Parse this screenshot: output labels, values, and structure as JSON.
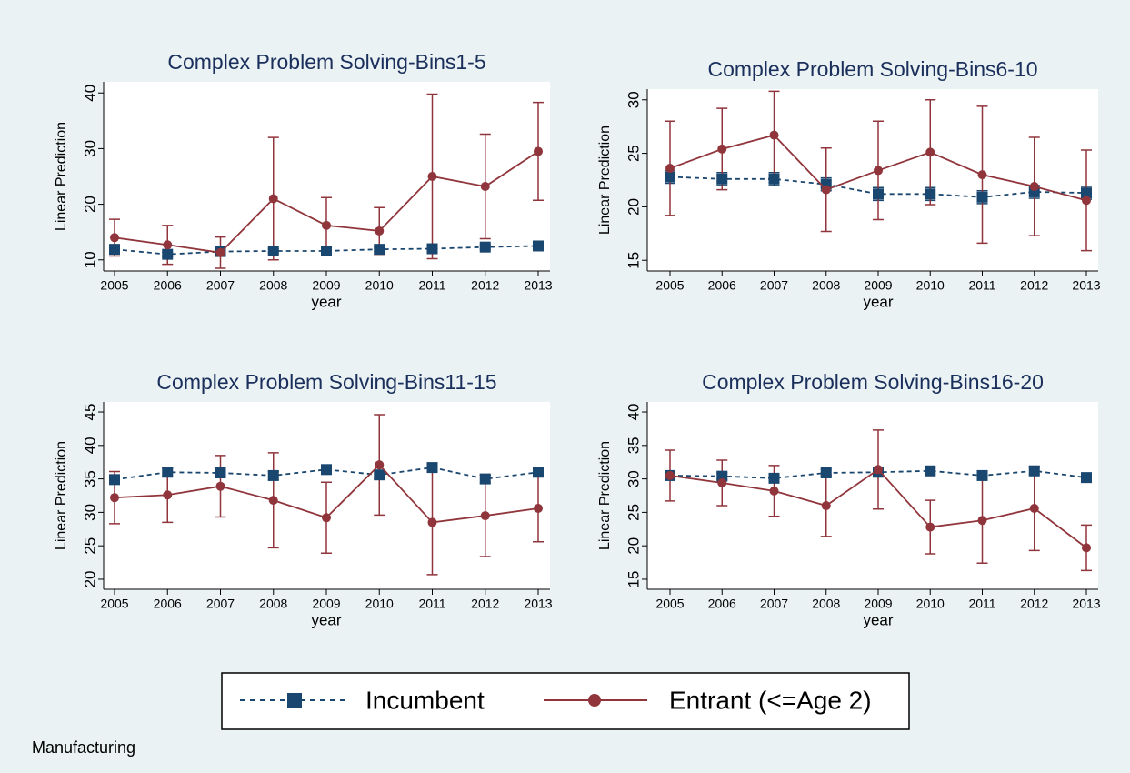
{
  "chart_data": [
    {
      "type": "line",
      "title": "Complex Problem Solving-Bins1-5",
      "x_label": "year",
      "y_label": "Linear Prediction",
      "x": [
        2005,
        2006,
        2007,
        2008,
        2009,
        2010,
        2011,
        2012,
        2013
      ],
      "xlim": [
        2005,
        2013
      ],
      "xticks": [
        2005,
        2006,
        2007,
        2008,
        2009,
        2010,
        2011,
        2012,
        2013
      ],
      "ylim": [
        8,
        42
      ],
      "yticks": [
        10,
        20,
        30,
        40
      ],
      "series": [
        {
          "name": "Incumbent",
          "color": "#1a476f",
          "dashed": true,
          "marker": "square",
          "values": [
            11.9,
            11,
            11.5,
            11.6,
            11.6,
            11.9,
            12,
            12.3,
            12.5
          ],
          "errors": [
            0.4,
            0.4,
            0.4,
            0.4,
            0.4,
            0.4,
            0.4,
            0.4,
            0.4
          ]
        },
        {
          "name": "Entrant (<=Age 2)",
          "color": "#90353b",
          "dashed": false,
          "marker": "circle",
          "values": [
            14,
            12.7,
            11.3,
            21,
            16.2,
            15.2,
            25,
            23.2,
            29.5
          ],
          "errors": [
            3.3,
            3.5,
            2.8,
            11,
            5,
            4.2,
            14.8,
            9.4,
            8.8
          ]
        }
      ]
    },
    {
      "type": "line",
      "title": "Complex Problem Solving-Bins6-10",
      "x_label": "year",
      "y_label": "Linear Prediction",
      "x": [
        2005,
        2006,
        2007,
        2008,
        2009,
        2010,
        2011,
        2012,
        2013
      ],
      "xlim": [
        2005,
        2013
      ],
      "xticks": [
        2005,
        2006,
        2007,
        2008,
        2009,
        2010,
        2011,
        2012,
        2013
      ],
      "ylim": [
        14,
        31
      ],
      "yticks": [
        15,
        20,
        25,
        30
      ],
      "series": [
        {
          "name": "Incumbent",
          "color": "#1a476f",
          "dashed": true,
          "marker": "square",
          "values": [
            22.8,
            22.6,
            22.6,
            22.1,
            21.2,
            21.2,
            20.9,
            21.4,
            21.3
          ],
          "errors": [
            0.6,
            0.6,
            0.6,
            0.6,
            0.6,
            0.6,
            0.6,
            0.6,
            0.6
          ]
        },
        {
          "name": "Entrant (<=Age 2)",
          "color": "#90353b",
          "dashed": false,
          "marker": "circle",
          "values": [
            23.6,
            25.4,
            26.7,
            21.6,
            23.4,
            25.1,
            23,
            21.9,
            20.6
          ],
          "errors": [
            4.4,
            3.8,
            4.1,
            3.9,
            4.6,
            4.9,
            6.4,
            4.6,
            4.7
          ]
        }
      ]
    },
    {
      "type": "line",
      "title": "Complex Problem Solving-Bins11-15",
      "x_label": "year",
      "y_label": "Linear Prediction",
      "x": [
        2005,
        2006,
        2007,
        2008,
        2009,
        2010,
        2011,
        2012,
        2013
      ],
      "xlim": [
        2005,
        2013
      ],
      "xticks": [
        2005,
        2006,
        2007,
        2008,
        2009,
        2010,
        2011,
        2012,
        2013
      ],
      "ylim": [
        18.5,
        46.5
      ],
      "yticks": [
        20,
        25,
        30,
        35,
        40,
        45
      ],
      "series": [
        {
          "name": "Incumbent",
          "color": "#1a476f",
          "dashed": true,
          "marker": "square",
          "values": [
            34.9,
            36,
            35.9,
            35.5,
            36.4,
            35.6,
            36.7,
            35,
            36
          ],
          "errors": [
            0.6,
            0.6,
            0.6,
            0.6,
            0.6,
            0.6,
            0.6,
            0.6,
            0.6
          ]
        },
        {
          "name": "Entrant (<=Age 2)",
          "color": "#90353b",
          "dashed": false,
          "marker": "circle",
          "values": [
            32.2,
            32.6,
            33.9,
            31.8,
            29.2,
            37.1,
            28.5,
            29.5,
            30.6
          ],
          "errors": [
            3.9,
            4.1,
            4.6,
            7.1,
            5.3,
            7.5,
            7.8,
            6.1,
            5
          ]
        }
      ]
    },
    {
      "type": "line",
      "title": "Complex Problem Solving-Bins16-20",
      "x_label": "year",
      "y_label": "Linear Prediction",
      "x": [
        2005,
        2006,
        2007,
        2008,
        2009,
        2010,
        2011,
        2012,
        2013
      ],
      "xlim": [
        2005,
        2013
      ],
      "xticks": [
        2005,
        2006,
        2007,
        2008,
        2009,
        2010,
        2011,
        2012,
        2013
      ],
      "ylim": [
        13.5,
        41.5
      ],
      "yticks": [
        15,
        20,
        25,
        30,
        35,
        40
      ],
      "series": [
        {
          "name": "Incumbent",
          "color": "#1a476f",
          "dashed": true,
          "marker": "square",
          "values": [
            30.5,
            30.4,
            30.1,
            30.9,
            31,
            31.2,
            30.5,
            31.2,
            30.2
          ],
          "errors": [
            0.5,
            0.5,
            0.5,
            0.5,
            0.5,
            0.5,
            0.5,
            0.5,
            0.5
          ]
        },
        {
          "name": "Entrant (<=Age 2)",
          "color": "#90353b",
          "dashed": false,
          "marker": "circle",
          "values": [
            30.5,
            29.4,
            28.2,
            26,
            31.4,
            22.8,
            23.8,
            25.6,
            19.7
          ],
          "errors": [
            3.8,
            3.4,
            3.8,
            4.6,
            5.9,
            4,
            6.4,
            6.3,
            3.4
          ]
        }
      ]
    }
  ],
  "note": "Manufacturing"
}
